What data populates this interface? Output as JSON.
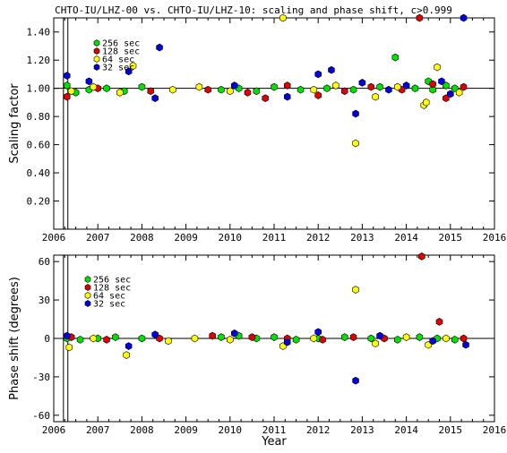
{
  "title": "CHTO-IU/LHZ-00 vs. CHTO-IU/LHZ-10: scaling and phase shift, c>0.999",
  "colors": {
    "256": "#00e000",
    "128": "#e00000",
    "64": "#ffff00",
    "32": "#0000e0"
  },
  "chart_data": [
    {
      "type": "scatter",
      "id": "scaling",
      "title": "CHTO-IU/LHZ-00 vs. CHTO-IU/LHZ-10: scaling and phase shift, c>0.999",
      "xlabel": "",
      "ylabel": "Scaling factor",
      "xlim": [
        2006,
        2016
      ],
      "ylim": [
        0.0,
        1.5
      ],
      "xticks": [
        "2006",
        "2007",
        "2008",
        "2009",
        "2010",
        "2011",
        "2012",
        "2013",
        "2014",
        "2015",
        "2016"
      ],
      "yticks": [
        "0.20",
        "0.40",
        "0.60",
        "0.80",
        "1.00",
        "1.20",
        "1.40"
      ],
      "ytick_values": [
        0.2,
        0.4,
        0.6,
        0.8,
        1.0,
        1.2,
        1.4
      ],
      "reference_line": 1.0,
      "legend_position": "top-left",
      "series": [
        {
          "name": "256 sec",
          "color": "#00e000",
          "x": [
            2006.3,
            2006.5,
            2006.8,
            2007.2,
            2007.6,
            2008.0,
            2009.8,
            2010.2,
            2010.6,
            2011.0,
            2011.6,
            2012.2,
            2012.8,
            2013.4,
            2013.75,
            2014.2,
            2014.5,
            2014.6,
            2014.9,
            2015.1
          ],
          "y": [
            1.02,
            0.97,
            0.99,
            1.0,
            0.98,
            1.01,
            0.99,
            1.0,
            0.98,
            1.01,
            0.99,
            1.0,
            0.99,
            1.01,
            1.22,
            1.0,
            1.05,
            0.99,
            1.02,
            1.0
          ]
        },
        {
          "name": "128 sec",
          "color": "#e00000",
          "x": [
            2006.3,
            2007.0,
            2008.2,
            2009.5,
            2010.4,
            2010.8,
            2011.3,
            2012.0,
            2012.6,
            2013.2,
            2013.9,
            2014.3,
            2014.6,
            2014.9,
            2015.3
          ],
          "y": [
            0.94,
            1.0,
            0.98,
            0.99,
            0.97,
            0.93,
            1.02,
            0.95,
            0.98,
            1.01,
            0.99,
            1.5,
            1.03,
            0.93,
            1.01
          ]
        },
        {
          "name": "64 sec",
          "color": "#ffff00",
          "x": [
            2006.4,
            2006.9,
            2007.5,
            2007.8,
            2008.7,
            2009.3,
            2010.0,
            2011.2,
            2011.9,
            2012.4,
            2012.85,
            2013.3,
            2013.8,
            2014.4,
            2014.7,
            2014.45,
            2015.2
          ],
          "y": [
            0.98,
            1.01,
            0.97,
            1.16,
            0.99,
            1.01,
            0.98,
            1.5,
            0.99,
            1.02,
            0.61,
            0.94,
            1.01,
            0.88,
            1.15,
            0.9,
            0.97
          ]
        },
        {
          "name": "32 sec",
          "color": "#0000e0",
          "x": [
            2006.3,
            2006.8,
            2007.7,
            2008.3,
            2008.4,
            2010.1,
            2011.3,
            2012.0,
            2012.3,
            2012.85,
            2013.0,
            2013.6,
            2014.0,
            2014.8,
            2015.0,
            2015.3
          ],
          "y": [
            1.09,
            1.05,
            1.12,
            0.93,
            1.29,
            1.02,
            0.94,
            1.1,
            1.13,
            0.82,
            1.04,
            0.99,
            1.02,
            1.05,
            0.96,
            1.5
          ]
        }
      ]
    },
    {
      "type": "scatter",
      "id": "phase",
      "title": "",
      "xlabel": "Year",
      "ylabel": "Phase shift (degrees)",
      "xlim": [
        2006,
        2016
      ],
      "ylim": [
        -65,
        65
      ],
      "xticks": [
        "2006",
        "2007",
        "2008",
        "2009",
        "2010",
        "2011",
        "2012",
        "2013",
        "2014",
        "2015",
        "2016"
      ],
      "yticks": [
        "-60",
        "-30",
        "0",
        "30",
        "60"
      ],
      "ytick_values": [
        -60,
        -30,
        0,
        30,
        60
      ],
      "reference_line": 0,
      "legend_position": "top-left",
      "series": [
        {
          "name": "256 sec",
          "color": "#00e000",
          "x": [
            2006.3,
            2006.6,
            2007.0,
            2007.4,
            2008.0,
            2009.8,
            2010.2,
            2010.6,
            2011.0,
            2011.5,
            2012.0,
            2012.6,
            2013.2,
            2013.8,
            2014.3,
            2014.7,
            2015.1
          ],
          "y": [
            0,
            -1,
            0,
            1,
            0,
            1,
            2,
            0,
            1,
            -1,
            0,
            1,
            0,
            -1,
            1,
            0,
            -1
          ]
        },
        {
          "name": "128 sec",
          "color": "#e00000",
          "x": [
            2006.4,
            2007.2,
            2008.4,
            2009.6,
            2010.5,
            2011.3,
            2012.1,
            2012.8,
            2013.5,
            2014.35,
            2014.75,
            2015.3
          ],
          "y": [
            1,
            -1,
            0,
            2,
            1,
            0,
            -1,
            1,
            0,
            64,
            13,
            0
          ]
        },
        {
          "name": "64 sec",
          "color": "#ffff00",
          "x": [
            2006.35,
            2006.9,
            2007.65,
            2008.6,
            2009.2,
            2010.0,
            2011.2,
            2011.9,
            2012.85,
            2013.3,
            2014.0,
            2014.5,
            2014.9
          ],
          "y": [
            -7,
            0,
            -13,
            -2,
            0,
            -1,
            -6,
            0,
            38,
            -4,
            1,
            -5,
            0
          ]
        },
        {
          "name": "32 sec",
          "color": "#0000e0",
          "x": [
            2006.3,
            2007.7,
            2008.3,
            2010.1,
            2011.3,
            2012.0,
            2012.85,
            2013.4,
            2014.6,
            2015.35
          ],
          "y": [
            2,
            -6,
            3,
            4,
            -3,
            5,
            -33,
            2,
            -2,
            -5
          ]
        }
      ]
    }
  ]
}
